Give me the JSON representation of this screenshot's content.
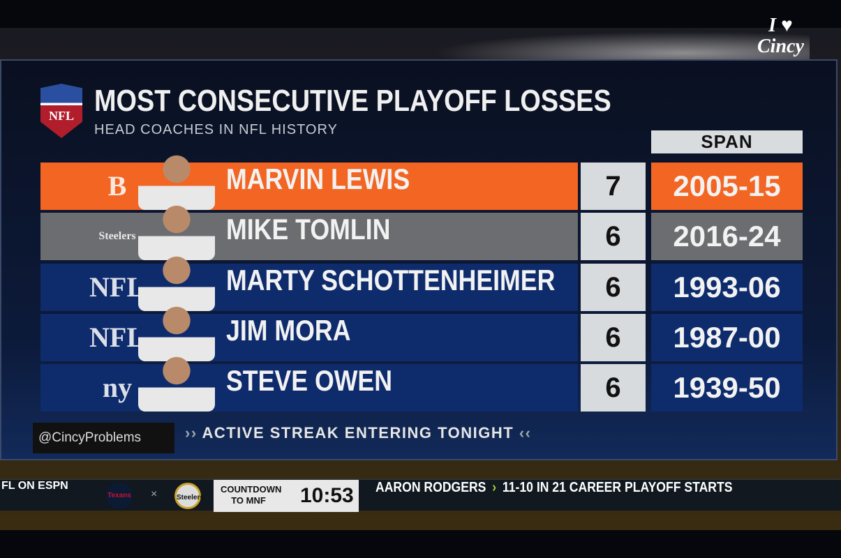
{
  "graphic": {
    "title": "MOST CONSECUTIVE PLAYOFF LOSSES",
    "subtitle": "HEAD COACHES IN NFL HISTORY",
    "logo_text": "NFL",
    "span_header": "SPAN",
    "rows": [
      {
        "name": "MARVIN LEWIS",
        "losses": "7",
        "span": "2005-15",
        "team": "Bengals",
        "team_mark": "B",
        "color": "#f26522",
        "span_color": "#f26522"
      },
      {
        "name": "MIKE TOMLIN",
        "losses": "6",
        "span": "2016-24",
        "team": "Steelers",
        "team_mark": "Steelers",
        "color": "#6b6d70",
        "span_color": "#6b6d70",
        "active": true
      },
      {
        "name": "MARTY SCHOTTENHEIMER",
        "losses": "6",
        "span": "1993-06",
        "team": "NFL",
        "team_mark": "NFL",
        "color": "#0e2b6c",
        "span_color": "#0e2b6c"
      },
      {
        "name": "JIM MORA",
        "losses": "6",
        "span": "1987-00",
        "team": "NFL",
        "team_mark": "NFL",
        "color": "#0e2b6c",
        "span_color": "#0e2b6c"
      },
      {
        "name": "STEVE OWEN",
        "losses": "6",
        "span": "1939-50",
        "team": "Giants",
        "team_mark": "ny",
        "color": "#0e2b6c",
        "span_color": "#0e2b6c"
      }
    ],
    "caption": "ACTIVE STREAK ENTERING TONIGHT",
    "caption_left": "››",
    "caption_right": "‹‹"
  },
  "watermark": "@CincyProblems",
  "brand": {
    "line1": "I ♥",
    "line2": "Cincy"
  },
  "ticker": {
    "network": "FL ON ESPN",
    "away_team": "Texans",
    "home_team": "Steelers",
    "vs": "×",
    "countdown_label": "COUNTDOWN TO MNF",
    "countdown_time": "10:53",
    "headline_subject": "AARON RODGERS",
    "headline_arrow": "›",
    "headline_text": "11-10 IN 21 CAREER PLAYOFF STARTS"
  }
}
